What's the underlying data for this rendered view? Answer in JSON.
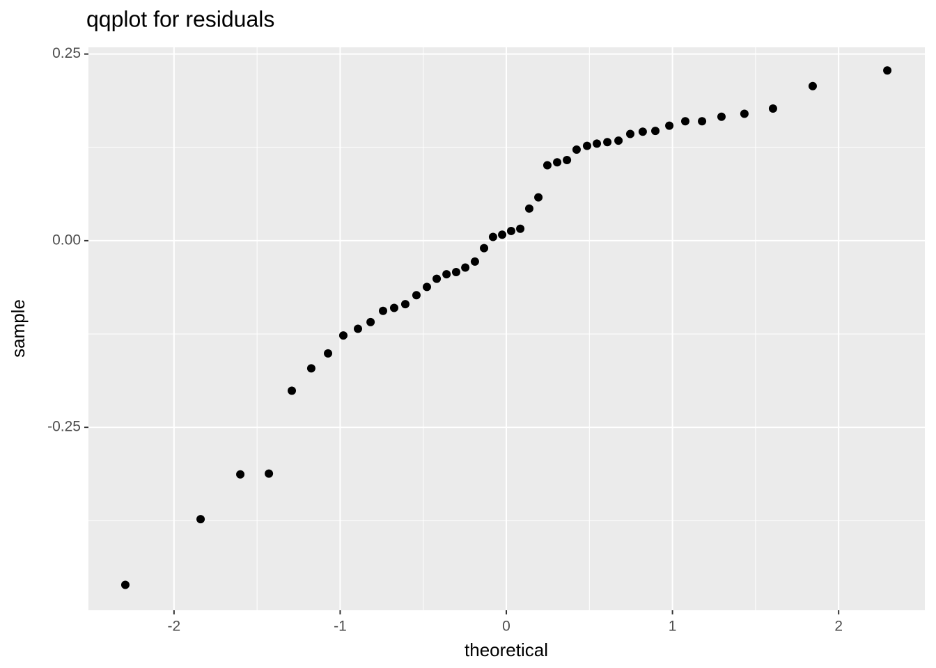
{
  "chart_data": {
    "type": "scatter",
    "title": "qqplot for residuals",
    "x_label": "theoretical",
    "y_label": "sample",
    "x": [
      -2.293,
      -1.84,
      -1.601,
      -1.429,
      -1.291,
      -1.174,
      -1.073,
      -0.981,
      -0.893,
      -0.817,
      -0.742,
      -0.675,
      -0.608,
      -0.541,
      -0.478,
      -0.419,
      -0.36,
      -0.302,
      -0.247,
      -0.189,
      -0.134,
      -0.08,
      -0.025,
      0.029,
      0.084,
      0.138,
      0.193,
      0.247,
      0.306,
      0.365,
      0.423,
      0.486,
      0.545,
      0.608,
      0.675,
      0.746,
      0.821,
      0.897,
      0.981,
      1.077,
      1.178,
      1.295,
      1.433,
      1.605,
      1.844,
      2.293
    ],
    "values": [
      -0.461,
      -0.373,
      -0.313,
      -0.312,
      -0.201,
      -0.171,
      -0.151,
      -0.127,
      -0.118,
      -0.109,
      -0.094,
      -0.09,
      -0.085,
      -0.073,
      -0.062,
      -0.051,
      -0.045,
      -0.042,
      -0.036,
      -0.028,
      -0.01,
      0.005,
      0.008,
      0.013,
      0.016,
      0.043,
      0.058,
      0.101,
      0.105,
      0.108,
      0.122,
      0.127,
      0.13,
      0.132,
      0.134,
      0.143,
      0.146,
      0.147,
      0.154,
      0.16,
      0.16,
      0.166,
      0.17,
      0.177,
      0.207,
      0.228
    ],
    "color": "#000000",
    "xlim": [
      -2.515,
      2.519
    ],
    "ylim": [
      -0.495,
      0.259
    ],
    "xticks": [
      -2,
      -1,
      0,
      1,
      2
    ],
    "yticks": [
      0.25,
      {
        "value": 0,
        "label": "0.00"
      },
      -0.25
    ],
    "x_minor_grid": [
      -1.5,
      -0.5,
      0.5,
      1.5
    ],
    "y_minor_grid": [
      0.125,
      -0.125,
      -0.375
    ],
    "grid": true
  }
}
